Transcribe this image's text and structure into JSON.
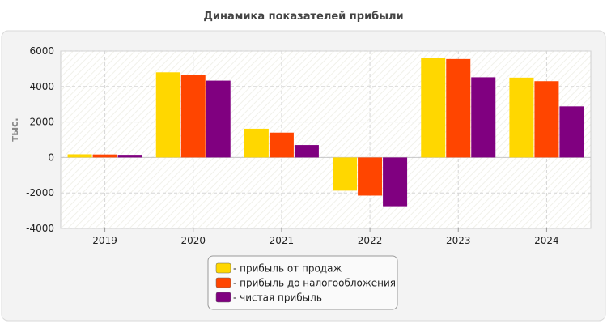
{
  "chart_data": {
    "type": "bar",
    "title": "Динамика показателей прибыли",
    "ylabel": "тыс.",
    "xlabel": "",
    "categories": [
      "2019",
      "2020",
      "2021",
      "2022",
      "2023",
      "2024"
    ],
    "ylim": [
      -4000,
      6000
    ],
    "yticks": [
      -4000,
      -2000,
      0,
      2000,
      4000,
      6000
    ],
    "grid": true,
    "legend_position": "bottom",
    "series": [
      {
        "name": "- прибыль от продаж",
        "color": "#FFD700",
        "values": [
          180,
          4800,
          1620,
          -1870,
          5620,
          4500
        ]
      },
      {
        "name": "- прибыль до налогообложения",
        "color": "#FF4500",
        "values": [
          170,
          4670,
          1400,
          -2150,
          5550,
          4300
        ]
      },
      {
        "name": "- чистая прибыль",
        "color": "#800080",
        "values": [
          150,
          4330,
          700,
          -2750,
          4520,
          2880
        ]
      }
    ]
  }
}
